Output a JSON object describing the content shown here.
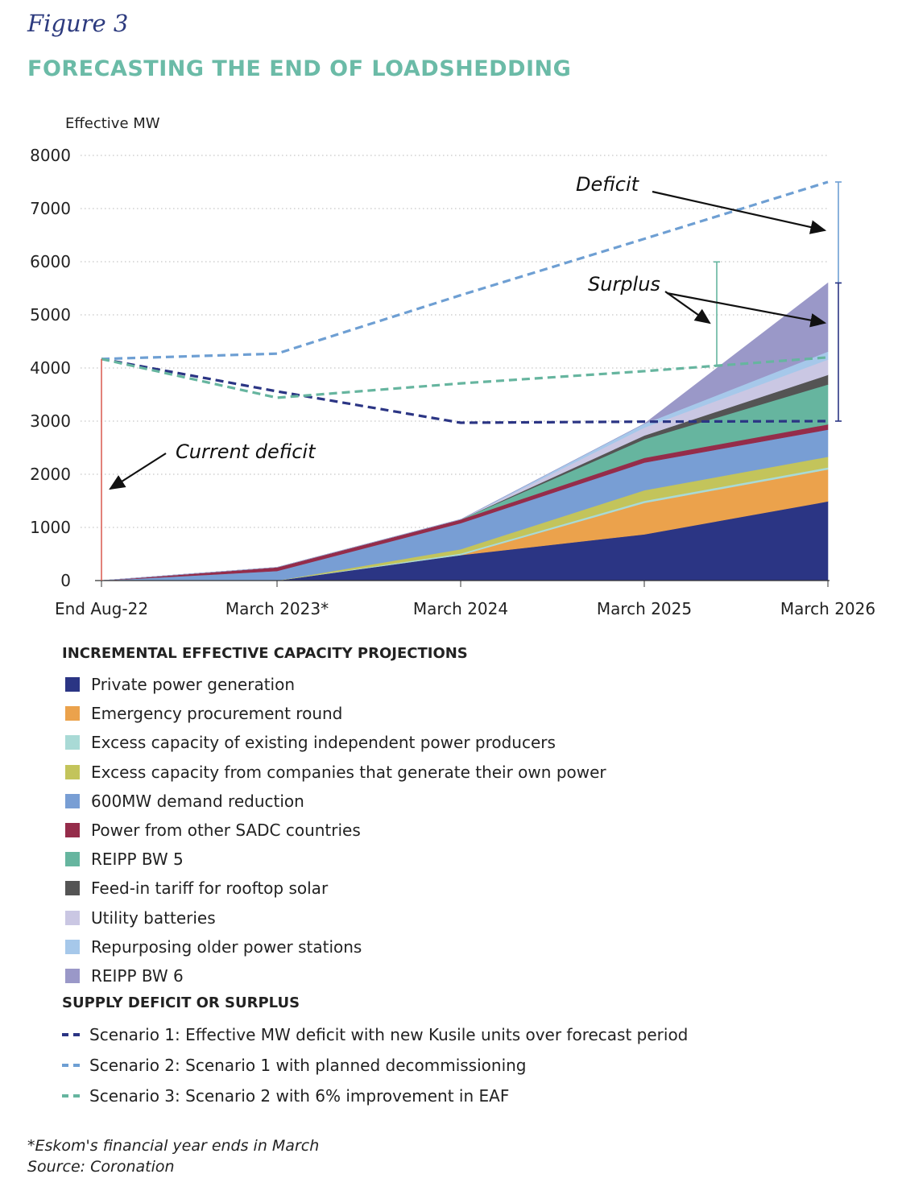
{
  "figure_label": "Figure 3",
  "title": "FORECASTING THE END OF LOADSHEDDING",
  "chart_data": {
    "type": "area",
    "ylabel": "Effective MW",
    "ylim": [
      0,
      8000
    ],
    "yticks": [
      0,
      1000,
      2000,
      3000,
      4000,
      5000,
      6000,
      7000,
      8000
    ],
    "categories": [
      "End Aug-22",
      "March 2023*",
      "March 2024",
      "March 2025",
      "March 2026"
    ],
    "grid": true,
    "stacked_series": [
      {
        "name": "Private power generation",
        "color": "#2b3584",
        "values": [
          0,
          0,
          480,
          870,
          1490
        ]
      },
      {
        "name": "Emergency procurement round",
        "color": "#eba24c",
        "values": [
          0,
          0,
          0,
          590,
          600
        ]
      },
      {
        "name": "Excess capacity of existing independent power producers",
        "color": "#a9dad6",
        "values": [
          0,
          0,
          30,
          40,
          40
        ]
      },
      {
        "name": "Excess capacity from companies that generate their own power",
        "color": "#c3c45b",
        "values": [
          0,
          0,
          80,
          200,
          200
        ]
      },
      {
        "name": "600MW demand reduction",
        "color": "#789ed4",
        "values": [
          0,
          180,
          490,
          520,
          510
        ]
      },
      {
        "name": "Power from other SADC countries",
        "color": "#952c4a",
        "values": [
          0,
          70,
          70,
          90,
          100
        ]
      },
      {
        "name": "REIPP BW 5",
        "color": "#66b59f",
        "values": [
          0,
          0,
          0,
          350,
          750
        ]
      },
      {
        "name": "Feed-in tariff for rooftop solar",
        "color": "#545454",
        "values": [
          0,
          0,
          0,
          70,
          180
        ]
      },
      {
        "name": "Utility batteries",
        "color": "#cac7e3",
        "values": [
          0,
          0,
          0,
          150,
          290
        ]
      },
      {
        "name": "Repurposing older power stations",
        "color": "#a6c8ea",
        "values": [
          0,
          0,
          0,
          70,
          150
        ]
      },
      {
        "name": "REIPP BW 6",
        "color": "#9a98c8",
        "values": [
          0,
          0,
          0,
          0,
          1290
        ]
      }
    ],
    "line_series": [
      {
        "name": "Scenario 1: Effective MW deficit with new Kusile units over forecast period",
        "color": "#2b3584",
        "values": [
          4170,
          3560,
          2970,
          2990,
          3000
        ]
      },
      {
        "name": "Scenario 2: Scenario 1 with planned decommissioning",
        "color": "#6e9fd3",
        "values": [
          4170,
          4270,
          5370,
          6430,
          7500
        ]
      },
      {
        "name": "Scenario 3: Scenario 2 with 6% improvement in EAF",
        "color": "#66b59f",
        "values": [
          4170,
          3440,
          3710,
          3940,
          4200
        ]
      }
    ],
    "annotations": {
      "current_deficit": "Current deficit",
      "deficit": "Deficit",
      "surplus": "Surplus"
    }
  },
  "legend": {
    "heading_capacity": "INCREMENTAL EFFECTIVE CAPACITY PROJECTIONS",
    "heading_supply": "SUPPLY DEFICIT OR SURPLUS"
  },
  "footnotes": {
    "note": "*Eskom's financial year ends in March",
    "source": "Source: Coronation"
  }
}
